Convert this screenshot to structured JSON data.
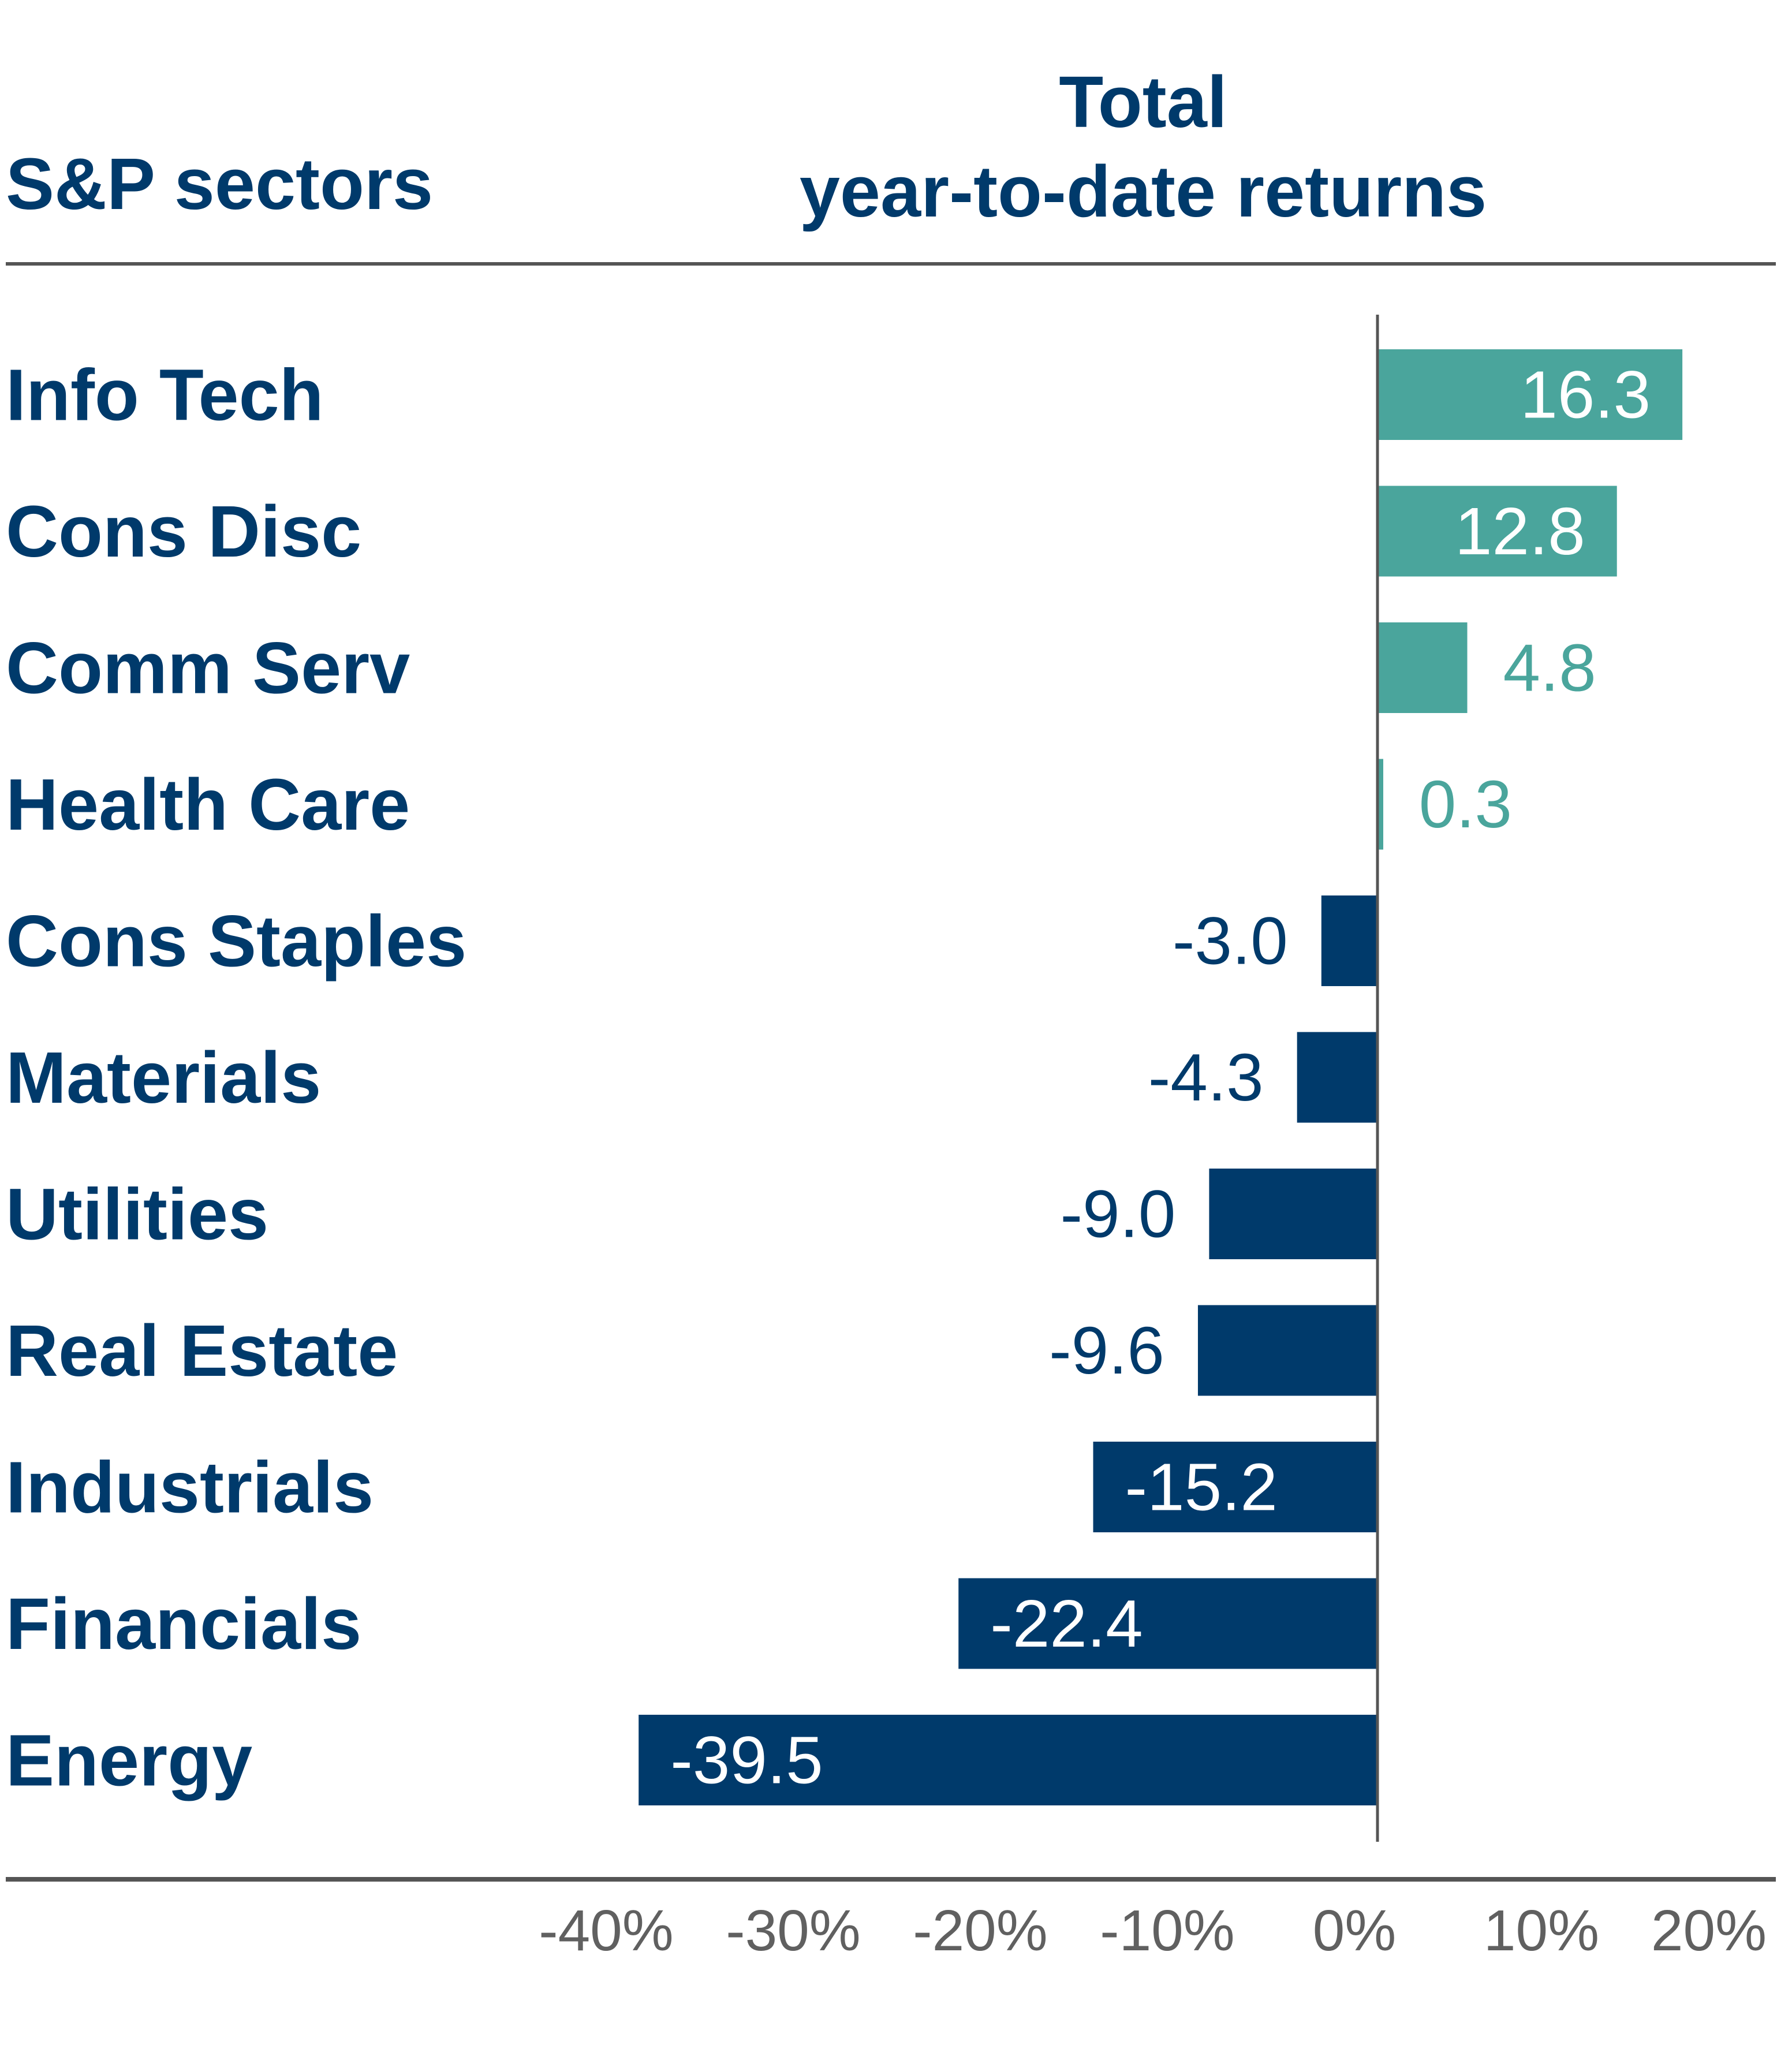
{
  "chart_data": {
    "type": "bar",
    "orientation": "horizontal",
    "left_header": "S&P sectors",
    "title_line1": "Total",
    "title_line2": "year-to-date returns",
    "categories": [
      "Info Tech",
      "Cons Disc",
      "Comm Serv",
      "Health Care",
      "Cons Staples",
      "Materials",
      "Utilities",
      "Real Estate",
      "Industrials",
      "Financials",
      "Energy"
    ],
    "values": [
      16.3,
      12.8,
      4.8,
      0.3,
      -3.0,
      -4.3,
      -9.0,
      -9.6,
      -15.2,
      -22.4,
      -39.5
    ],
    "value_labels": [
      "16.3",
      "12.8",
      "4.8",
      "0.3",
      "-3.0",
      "-4.3",
      "-9.0",
      "-9.6",
      "-15.2",
      "-22.4",
      "-39.5"
    ],
    "x_ticks": [
      -40,
      -30,
      -20,
      -10,
      0,
      10,
      20
    ],
    "x_tick_labels": [
      "-40%",
      "-30%",
      "-20%",
      "-10%",
      "0%",
      "10%",
      "20%"
    ],
    "xlim": [
      -40,
      20
    ],
    "colors": {
      "positive": "#4aa59c",
      "negative": "#003a6b",
      "text": "#003a6b",
      "axis": "#555555",
      "tick": "#606060"
    }
  }
}
